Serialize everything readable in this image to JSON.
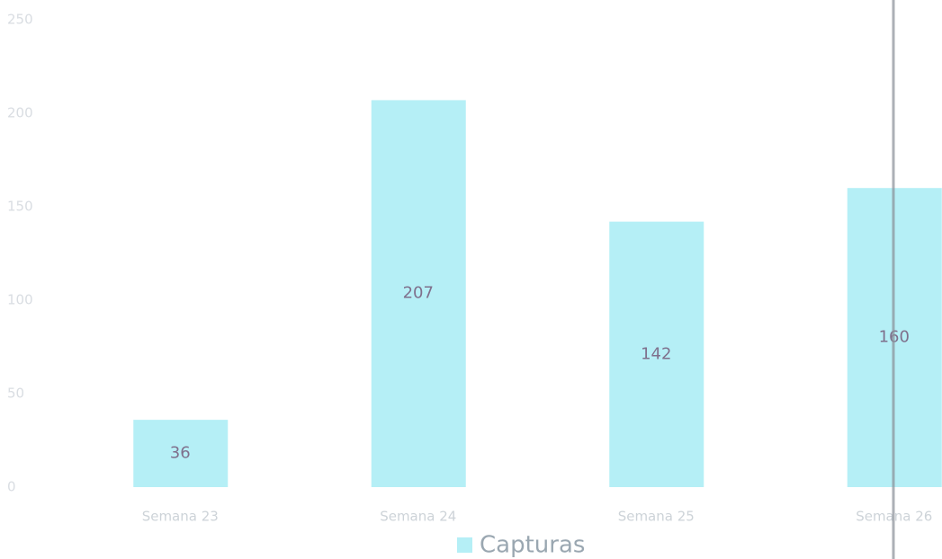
{
  "chart_data": {
    "type": "bar",
    "categories": [
      "Semana 23",
      "Semana 24",
      "Semana 25",
      "Semana 26"
    ],
    "series": [
      {
        "name": "Capturas",
        "color": "#b5eff6",
        "values": [
          36,
          207,
          142,
          160
        ]
      }
    ],
    "ylim": [
      0,
      250
    ],
    "yticks": [
      0,
      50,
      100,
      150,
      200,
      250
    ],
    "grid": false,
    "legend": "bottom"
  }
}
